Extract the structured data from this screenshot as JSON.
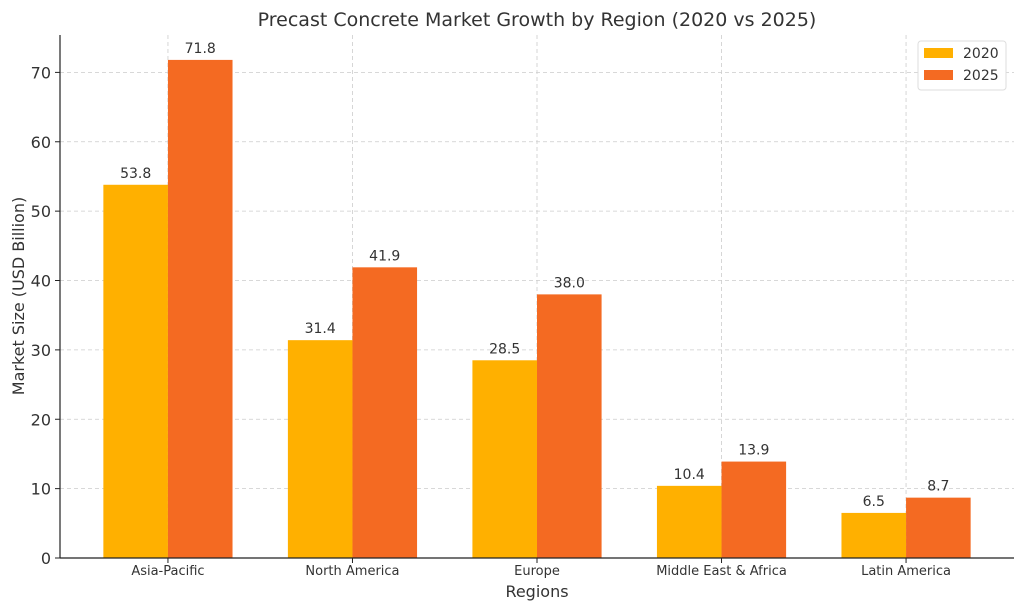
{
  "chart_data": {
    "type": "bar",
    "title": "Precast Concrete Market Growth by Region (2020 vs 2025)",
    "xlabel": "Regions",
    "ylabel": "Market Size (USD Billion)",
    "categories": [
      "Asia-Pacific",
      "North America",
      "Europe",
      "Middle East & Africa",
      "Latin America"
    ],
    "series": [
      {
        "name": "2020",
        "color": "#FFB000",
        "values": [
          53.8,
          31.4,
          28.5,
          10.4,
          6.5
        ]
      },
      {
        "name": "2025",
        "color": "#F46A22",
        "values": [
          71.8,
          41.9,
          38.0,
          13.9,
          8.7
        ]
      }
    ],
    "ylim": [
      0,
      75.39
    ],
    "yticks": [
      0,
      10,
      20,
      30,
      40,
      50,
      60,
      70
    ],
    "grid": true,
    "legend": "top-right",
    "data_labels": true
  }
}
